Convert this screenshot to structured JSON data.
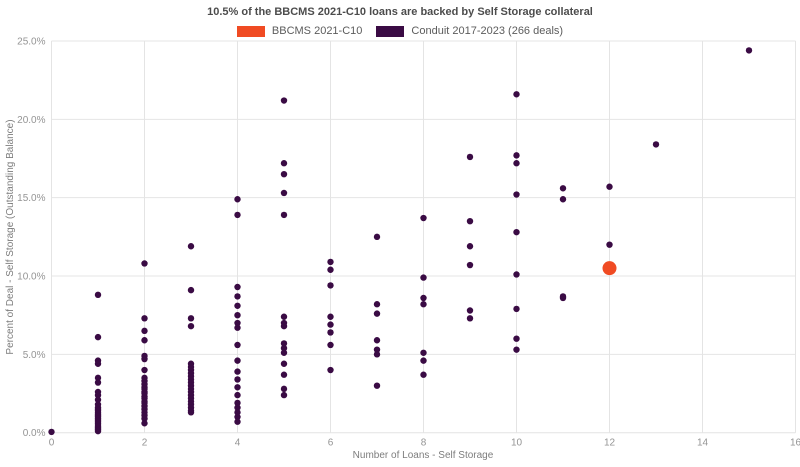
{
  "header": {
    "title": "10.5% of the BBCMS 2021-C10 loans are backed by Self Storage collateral"
  },
  "legend": {
    "items": [
      {
        "label": "BBCMS 2021-C10",
        "color": "#f04b23"
      },
      {
        "label": "Conduit 2017-2023 (266 deals)",
        "color": "#3a0b44"
      }
    ]
  },
  "chart_data": {
    "type": "scatter",
    "title": "10.5% of the BBCMS 2021-C10 loans are backed by Self Storage collateral",
    "xlabel": "Number of Loans - Self Storage",
    "ylabel": "Percent of Deal - Self Storage (Outstanding Balance)",
    "xlim": [
      0,
      16
    ],
    "ylim": [
      0,
      25
    ],
    "xticks": [
      0,
      2,
      4,
      6,
      8,
      10,
      12,
      14,
      16
    ],
    "xtick_labels": [
      "0",
      "2",
      "4",
      "6",
      "8",
      "10",
      "12",
      "14",
      "16"
    ],
    "yticks": [
      0,
      5,
      10,
      15,
      20,
      25
    ],
    "ytick_labels": [
      "0.0%",
      "5.0%",
      "10.0%",
      "15.0%",
      "20.0%",
      "25.0%"
    ],
    "grid": true,
    "legend_position": "top",
    "series": [
      {
        "name": "BBCMS 2021-C10",
        "color": "#f04b23",
        "marker_radius": 7,
        "points": [
          [
            12,
            10.5
          ]
        ]
      },
      {
        "name": "Conduit 2017-2023 (266 deals)",
        "color": "#3a0b44",
        "marker_radius": 3.2,
        "points": [
          [
            0,
            0.05
          ],
          [
            1,
            8.8
          ],
          [
            1,
            6.1
          ],
          [
            1,
            4.6
          ],
          [
            1,
            4.4
          ],
          [
            1,
            3.5
          ],
          [
            1,
            3.2
          ],
          [
            1,
            2.6
          ],
          [
            1,
            2.4
          ],
          [
            1,
            2.1
          ],
          [
            1,
            1.8
          ],
          [
            1,
            1.6
          ],
          [
            1,
            1.5
          ],
          [
            1,
            1.4
          ],
          [
            1,
            1.3
          ],
          [
            1,
            1.2
          ],
          [
            1,
            1.1
          ],
          [
            1,
            1.0
          ],
          [
            1,
            0.9
          ],
          [
            1,
            0.8
          ],
          [
            1,
            0.7
          ],
          [
            1,
            0.6
          ],
          [
            1,
            0.5
          ],
          [
            1,
            0.4
          ],
          [
            1,
            0.3
          ],
          [
            1,
            0.2
          ],
          [
            1,
            0.1
          ],
          [
            2,
            10.8
          ],
          [
            2,
            7.3
          ],
          [
            2,
            6.5
          ],
          [
            2,
            5.9
          ],
          [
            2,
            4.9
          ],
          [
            2,
            4.7
          ],
          [
            2,
            4.0
          ],
          [
            2,
            3.5
          ],
          [
            2,
            3.3
          ],
          [
            2,
            3.1
          ],
          [
            2,
            2.9
          ],
          [
            2,
            2.8
          ],
          [
            2,
            2.6
          ],
          [
            2,
            2.5
          ],
          [
            2,
            2.3
          ],
          [
            2,
            2.2
          ],
          [
            2,
            2.0
          ],
          [
            2,
            1.9
          ],
          [
            2,
            1.7
          ],
          [
            2,
            1.5
          ],
          [
            2,
            1.3
          ],
          [
            2,
            1.1
          ],
          [
            2,
            0.9
          ],
          [
            2,
            0.6
          ],
          [
            3,
            11.9
          ],
          [
            3,
            9.1
          ],
          [
            3,
            7.3
          ],
          [
            3,
            6.8
          ],
          [
            3,
            4.4
          ],
          [
            3,
            4.2
          ],
          [
            3,
            4.0
          ],
          [
            3,
            3.8
          ],
          [
            3,
            3.6
          ],
          [
            3,
            3.4
          ],
          [
            3,
            3.2
          ],
          [
            3,
            3.0
          ],
          [
            3,
            2.8
          ],
          [
            3,
            2.6
          ],
          [
            3,
            2.4
          ],
          [
            3,
            2.2
          ],
          [
            3,
            2.0
          ],
          [
            3,
            1.8
          ],
          [
            3,
            1.6
          ],
          [
            3,
            1.4
          ],
          [
            3,
            1.3
          ],
          [
            4,
            14.9
          ],
          [
            4,
            13.9
          ],
          [
            4,
            9.3
          ],
          [
            4,
            8.7
          ],
          [
            4,
            8.1
          ],
          [
            4,
            7.5
          ],
          [
            4,
            7.0
          ],
          [
            4,
            6.7
          ],
          [
            4,
            5.6
          ],
          [
            4,
            4.6
          ],
          [
            4,
            3.9
          ],
          [
            4,
            3.4
          ],
          [
            4,
            2.9
          ],
          [
            4,
            2.4
          ],
          [
            4,
            1.9
          ],
          [
            4,
            1.6
          ],
          [
            4,
            1.3
          ],
          [
            4,
            1.0
          ],
          [
            4,
            0.7
          ],
          [
            5,
            21.2
          ],
          [
            5,
            17.2
          ],
          [
            5,
            16.5
          ],
          [
            5,
            15.3
          ],
          [
            5,
            13.9
          ],
          [
            5,
            7.4
          ],
          [
            5,
            7.0
          ],
          [
            5,
            6.8
          ],
          [
            5,
            5.7
          ],
          [
            5,
            5.4
          ],
          [
            5,
            5.1
          ],
          [
            5,
            4.4
          ],
          [
            5,
            3.7
          ],
          [
            5,
            2.8
          ],
          [
            5,
            2.4
          ],
          [
            6,
            10.9
          ],
          [
            6,
            10.4
          ],
          [
            6,
            9.4
          ],
          [
            6,
            7.4
          ],
          [
            6,
            6.9
          ],
          [
            6,
            6.4
          ],
          [
            6,
            5.6
          ],
          [
            6,
            4.0
          ],
          [
            7,
            12.5
          ],
          [
            7,
            8.2
          ],
          [
            7,
            7.6
          ],
          [
            7,
            5.9
          ],
          [
            7,
            5.3
          ],
          [
            7,
            5.0
          ],
          [
            7,
            3.0
          ],
          [
            8,
            13.7
          ],
          [
            8,
            9.9
          ],
          [
            8,
            8.6
          ],
          [
            8,
            8.2
          ],
          [
            8,
            5.1
          ],
          [
            8,
            4.6
          ],
          [
            8,
            3.7
          ],
          [
            9,
            17.6
          ],
          [
            9,
            13.5
          ],
          [
            9,
            11.9
          ],
          [
            9,
            10.7
          ],
          [
            9,
            7.8
          ],
          [
            9,
            7.3
          ],
          [
            10,
            21.6
          ],
          [
            10,
            17.7
          ],
          [
            10,
            17.2
          ],
          [
            10,
            15.2
          ],
          [
            10,
            12.8
          ],
          [
            10,
            10.1
          ],
          [
            10,
            7.9
          ],
          [
            10,
            6.0
          ],
          [
            10,
            5.3
          ],
          [
            11,
            15.6
          ],
          [
            11,
            14.9
          ],
          [
            11,
            8.7
          ],
          [
            11,
            8.6
          ],
          [
            12,
            15.7
          ],
          [
            12,
            12.0
          ],
          [
            13,
            18.4
          ],
          [
            15,
            24.4
          ]
        ]
      }
    ]
  }
}
